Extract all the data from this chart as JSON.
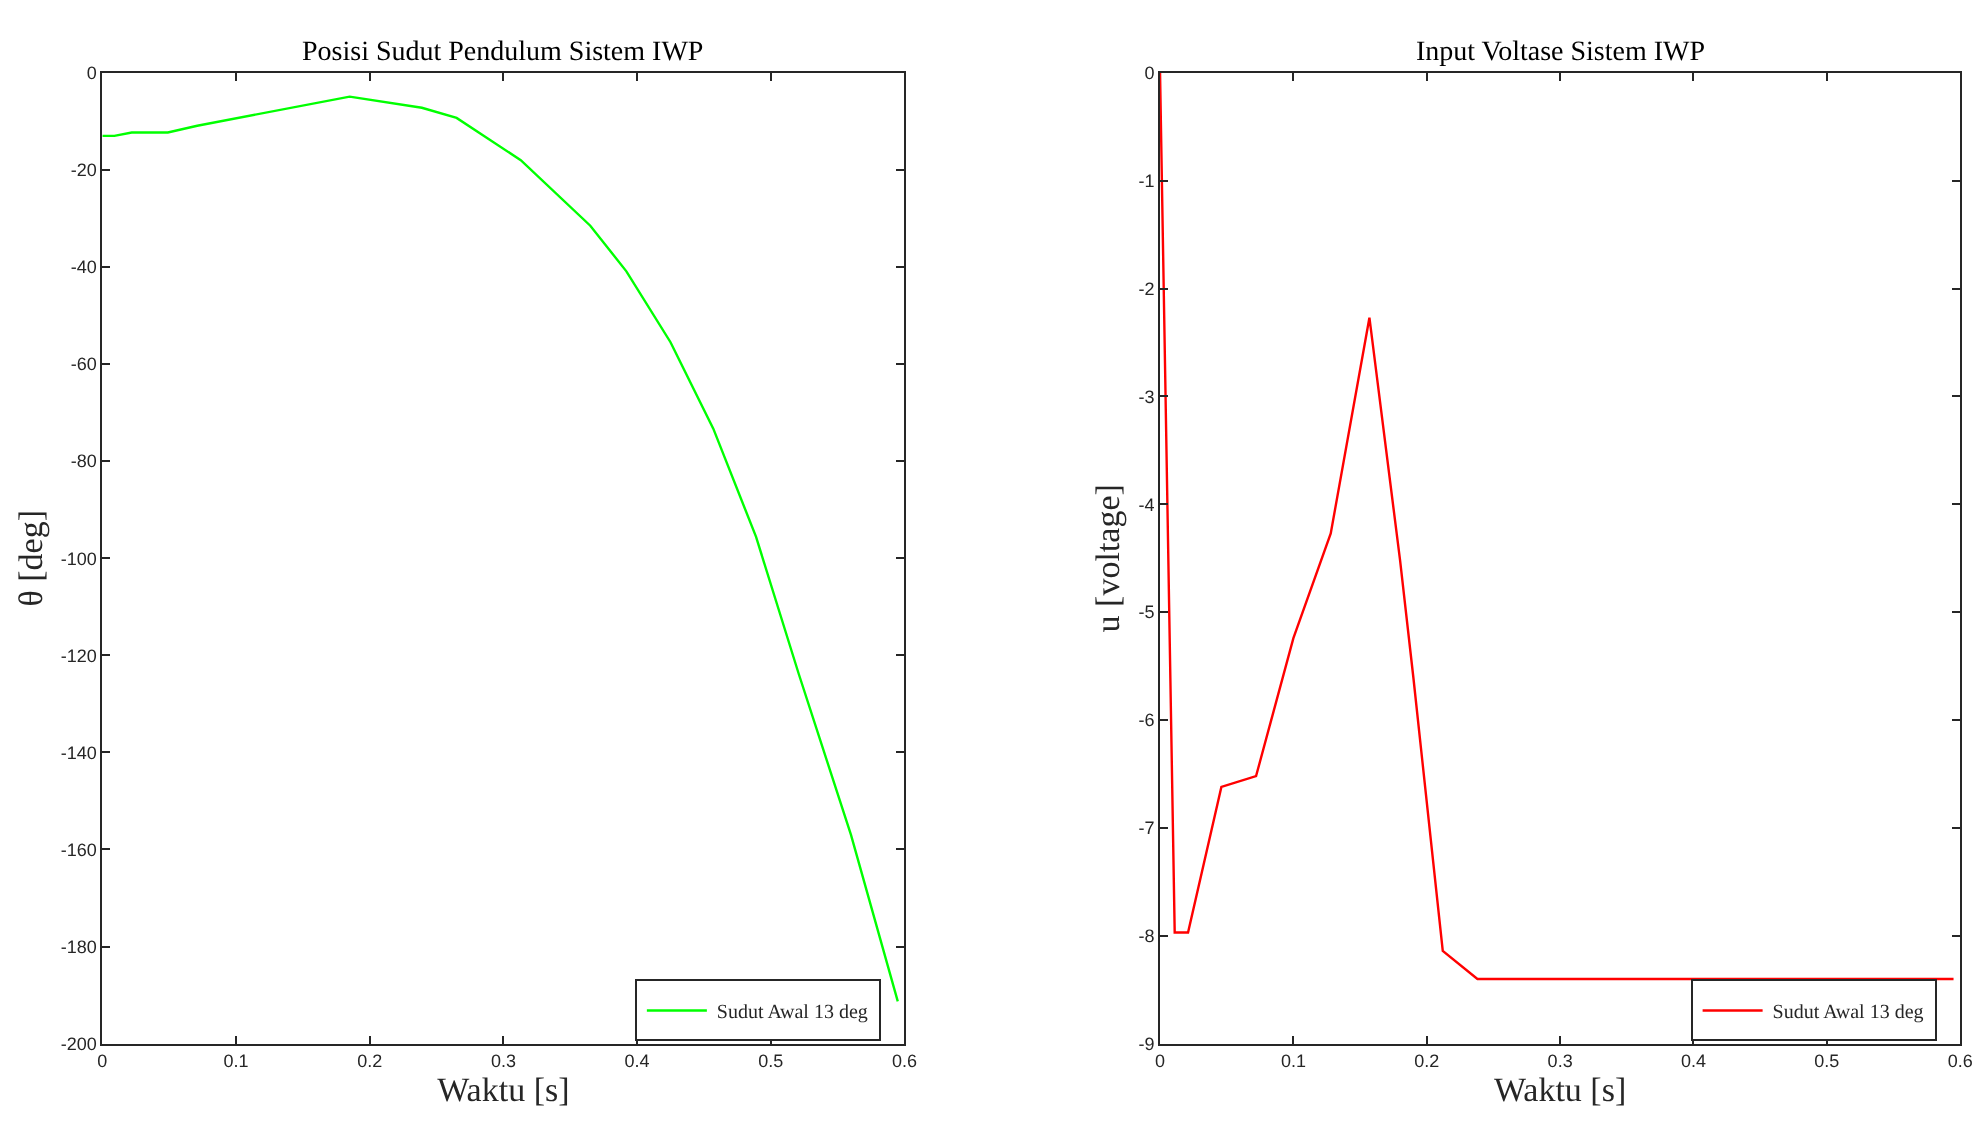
{
  "chart_data": [
    {
      "type": "line",
      "title": "Posisi Sudut Pendulum Sistem IWP",
      "xlabel": "Waktu [s]",
      "ylabel": "θ [deg]",
      "x": [
        0,
        0.009,
        0.022,
        0.049,
        0.071,
        0.185,
        0.239,
        0.265,
        0.313,
        0.365,
        0.392,
        0.425,
        0.457,
        0.489,
        0.521,
        0.56,
        0.595
      ],
      "series": [
        {
          "name": "Sudut Awal 13 deg",
          "color": "#00ff00",
          "values": [
            -13.0,
            -13.0,
            -12.3,
            -12.3,
            -10.9,
            -4.9,
            -7.2,
            -9.3,
            -18.0,
            -31.5,
            -40.9,
            -55.5,
            -73.3,
            -95.6,
            -123.9,
            -157,
            -191.3
          ]
        }
      ],
      "xlim": [
        0,
        0.6
      ],
      "ylim": [
        -200,
        0
      ],
      "xticks": [
        0,
        0.1,
        0.2,
        0.3,
        0.4,
        0.5,
        0.6
      ],
      "yticks": [
        -200,
        -180,
        -160,
        -140,
        -120,
        -100,
        -80,
        -60,
        -40,
        -20,
        0
      ],
      "legend": "bottom right"
    },
    {
      "type": "line",
      "title": "Input Voltase Sistem IWP",
      "xlabel": "Waktu [s]",
      "ylabel": "u [voltage]",
      "x": [
        0,
        0.011,
        0.021,
        0.046,
        0.072,
        0.1,
        0.128,
        0.157,
        0.18,
        0.19,
        0.212,
        0.238,
        0.595
      ],
      "series": [
        {
          "name": "Sudut Awal 13 deg",
          "color": "#ff0000",
          "values": [
            0,
            -7.97,
            -7.97,
            -6.62,
            -6.52,
            -5.24,
            -4.27,
            -2.27,
            -4.52,
            -5.61,
            -8.14,
            -8.4,
            -8.4
          ]
        }
      ],
      "xlim": [
        0,
        0.6
      ],
      "ylim": [
        -9,
        0
      ],
      "xticks": [
        0,
        0.1,
        0.2,
        0.3,
        0.4,
        0.5,
        0.6
      ],
      "yticks": [
        -9,
        -8,
        -7,
        -6,
        -5,
        -4,
        -3,
        -2,
        -1,
        0
      ],
      "legend": "bottom right"
    }
  ]
}
